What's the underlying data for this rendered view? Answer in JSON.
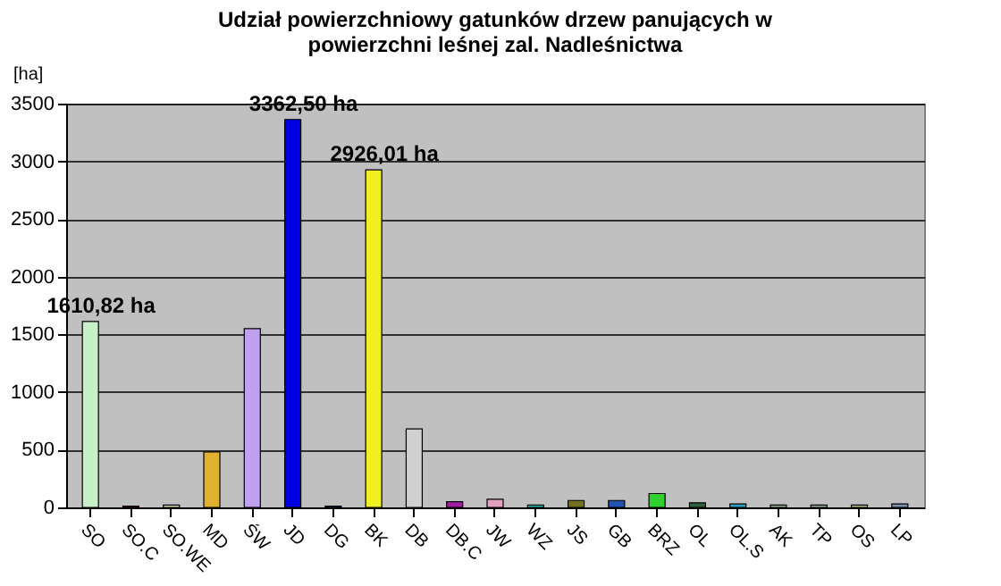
{
  "chart_data": {
    "type": "bar",
    "title": [
      "Udział powierzchniowy gatunków drzew panujących w",
      "powierzchni leśnej zal. Nadleśnictwa"
    ],
    "ylabel": "[ha]",
    "categories": [
      "SO",
      "SO.C",
      "SO.WE",
      "MD",
      "ŚW",
      "JD",
      "DG",
      "BK",
      "DB",
      "DB.C",
      "JW",
      "WZ",
      "JS",
      "GB",
      "BRZ",
      "OL",
      "OL.S",
      "AK",
      "TP",
      "OS",
      "LP"
    ],
    "values": [
      1610.82,
      10,
      20,
      480,
      1550,
      3362.5,
      10,
      2926.01,
      680,
      50,
      70,
      20,
      60,
      60,
      120,
      40,
      30,
      20,
      20,
      20,
      30
    ],
    "value_labels": [
      "1610,82 ha",
      null,
      null,
      null,
      null,
      "3362,50 ha",
      null,
      "2926,01 ha",
      null,
      null,
      null,
      null,
      null,
      null,
      null,
      null,
      null,
      null,
      null,
      null,
      null
    ],
    "colors": [
      "#c8f0c8",
      "#800040",
      "#d8d8b0",
      "#e0b030",
      "#c0a0f0",
      "#0000e0",
      "#1a4080",
      "#f0f020",
      "#d0d0d0",
      "#a020a0",
      "#e0a0c0",
      "#30b0b0",
      "#707020",
      "#2050b0",
      "#30d030",
      "#306040",
      "#30a0c0",
      "#a0b0a0",
      "#a0b0a0",
      "#c0c080",
      "#8090b0"
    ],
    "ylim": [
      0,
      3500
    ],
    "yticks": [
      0,
      500,
      1000,
      1500,
      2000,
      2500,
      3000,
      3500
    ],
    "grid": "y"
  }
}
